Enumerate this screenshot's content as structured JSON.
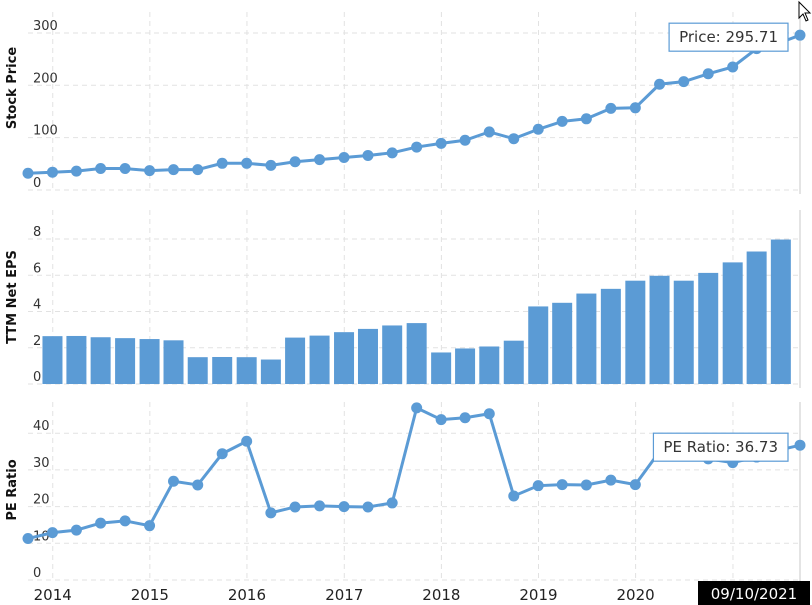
{
  "chart_data": [
    {
      "type": "line",
      "ylabel": "Stock Price",
      "yticks": [
        "0",
        "100",
        "200",
        "300"
      ],
      "ylim": [
        0,
        340
      ],
      "x": [
        "2013-09-30",
        "2013-12-31",
        "2014-03-31",
        "2014-06-30",
        "2014-09-30",
        "2014-12-31",
        "2015-03-31",
        "2015-06-30",
        "2015-09-30",
        "2015-12-31",
        "2016-03-31",
        "2016-06-30",
        "2016-09-30",
        "2016-12-31",
        "2017-03-31",
        "2017-06-30",
        "2017-09-30",
        "2017-12-31",
        "2018-03-31",
        "2018-06-30",
        "2018-09-30",
        "2018-12-31",
        "2019-03-31",
        "2019-06-30",
        "2019-09-30",
        "2019-12-31",
        "2020-03-31",
        "2020-06-30",
        "2020-09-30",
        "2020-12-31",
        "2021-03-31",
        "2021-06-30",
        "2021-09-10"
      ],
      "values": [
        32,
        34,
        36,
        41,
        41,
        37,
        39,
        39,
        51,
        51,
        47,
        54,
        58,
        62,
        66,
        71,
        82,
        89,
        95,
        111,
        98,
        116,
        131,
        136,
        156,
        157,
        202,
        207,
        222,
        235,
        270,
        282,
        295.71
      ],
      "tooltip": "Price: 295.71"
    },
    {
      "type": "bar",
      "ylabel": "TTM Net EPS",
      "yticks": [
        "0",
        "2",
        "4",
        "6",
        "8"
      ],
      "ylim": [
        0,
        9.6
      ],
      "x": [
        "2013-12-31",
        "2014-03-31",
        "2014-06-30",
        "2014-09-30",
        "2014-12-31",
        "2015-03-31",
        "2015-06-30",
        "2015-09-30",
        "2015-12-31",
        "2016-03-31",
        "2016-06-30",
        "2016-09-30",
        "2016-12-31",
        "2017-03-31",
        "2017-06-30",
        "2017-09-30",
        "2017-12-31",
        "2018-03-31",
        "2018-06-30",
        "2018-09-30",
        "2018-12-31",
        "2019-03-31",
        "2019-06-30",
        "2019-09-30",
        "2019-12-31",
        "2020-03-31",
        "2020-06-30",
        "2020-09-30",
        "2020-12-31",
        "2021-03-31",
        "2021-06-30"
      ],
      "values": [
        2.64,
        2.65,
        2.58,
        2.53,
        2.48,
        2.41,
        1.48,
        1.49,
        1.48,
        1.35,
        2.56,
        2.67,
        2.86,
        3.04,
        3.23,
        3.36,
        1.74,
        1.96,
        2.07,
        2.39,
        4.28,
        4.48,
        4.99,
        5.25,
        5.7,
        5.97,
        5.7,
        6.13,
        6.71,
        7.31,
        7.97
      ]
    },
    {
      "type": "line",
      "ylabel": "PE Ratio",
      "yticks": [
        "0",
        "10",
        "20",
        "30",
        "40"
      ],
      "ylim": [
        0,
        48.5
      ],
      "x": [
        "2013-09-30",
        "2013-12-31",
        "2014-03-31",
        "2014-06-30",
        "2014-09-30",
        "2014-12-31",
        "2015-03-31",
        "2015-06-30",
        "2015-09-30",
        "2015-12-31",
        "2016-03-31",
        "2016-06-30",
        "2016-09-30",
        "2016-12-31",
        "2017-03-31",
        "2017-06-30",
        "2017-09-30",
        "2017-12-31",
        "2018-03-31",
        "2018-06-30",
        "2018-09-30",
        "2018-12-31",
        "2019-03-31",
        "2019-06-30",
        "2019-09-30",
        "2019-12-31",
        "2020-03-31",
        "2020-06-30",
        "2020-09-30",
        "2020-12-31",
        "2021-03-31",
        "2021-06-30",
        "2021-09-10"
      ],
      "values": [
        11.3,
        12.9,
        13.6,
        15.5,
        16.1,
        14.8,
        26.9,
        25.9,
        34.4,
        37.8,
        18.3,
        19.9,
        20.2,
        20.0,
        19.9,
        21.0,
        46.9,
        43.7,
        44.2,
        45.3,
        22.9,
        25.7,
        26.0,
        25.9,
        27.2,
        26.0,
        35.0,
        35.0,
        33.0,
        32.0,
        33.5,
        35.5,
        36.73
      ],
      "tooltip": "PE Ratio: 36.73"
    }
  ],
  "x_axis": {
    "labels": [
      "2014",
      "2015",
      "2016",
      "2017",
      "2018",
      "2019",
      "2020"
    ],
    "range": [
      "2013-09-30",
      "2021-09-10"
    ],
    "current_date": "09/10/2021"
  },
  "colors": {
    "series": "#5b9bd5",
    "grid": "#e2e2e2"
  },
  "cursor_icon": "pointer-arrow-icon"
}
